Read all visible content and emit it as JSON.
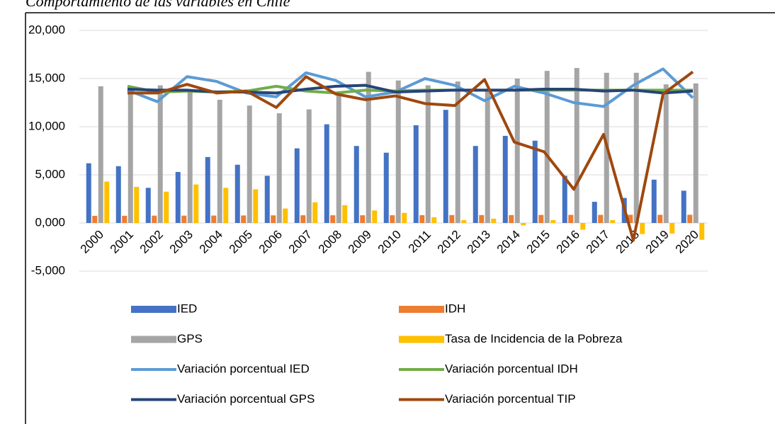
{
  "chart_data": {
    "type": "combo",
    "title": "Comportamiento de las variables en Chile",
    "categories": [
      "2000",
      "2001",
      "2002",
      "2003",
      "2004",
      "2005",
      "2006",
      "2007",
      "2008",
      "2009",
      "2010",
      "2011",
      "2012",
      "2013",
      "2014",
      "2015",
      "2016",
      "2017",
      "2018",
      "2019",
      "2020"
    ],
    "ylim": [
      -5,
      20
    ],
    "yticks": [
      {
        "value": -5,
        "label": "-5,000"
      },
      {
        "value": 0,
        "label": "0,000"
      },
      {
        "value": 5,
        "label": "5,000"
      },
      {
        "value": 10,
        "label": "10,000"
      },
      {
        "value": 15,
        "label": "15,000"
      },
      {
        "value": 20,
        "label": "20,000"
      }
    ],
    "grid": true,
    "series": [
      {
        "name": "IED",
        "type": "bar",
        "color": "#4472c4",
        "values": [
          6.2,
          5.9,
          3.65,
          5.3,
          6.85,
          6.05,
          4.9,
          7.75,
          10.25,
          8.0,
          7.3,
          10.15,
          11.75,
          8.0,
          9.05,
          8.55,
          4.9,
          2.2,
          2.6,
          4.5,
          3.35
        ]
      },
      {
        "name": "IDH",
        "type": "bar",
        "color": "#ed7d31",
        "values": [
          0.74,
          0.75,
          0.76,
          0.76,
          0.77,
          0.78,
          0.79,
          0.8,
          0.8,
          0.8,
          0.8,
          0.81,
          0.82,
          0.82,
          0.82,
          0.83,
          0.84,
          0.84,
          0.85,
          0.85,
          0.85
        ]
      },
      {
        "name": "GPS",
        "type": "bar",
        "color": "#a5a5a5",
        "values": [
          14.2,
          13.9,
          14.3,
          13.8,
          12.8,
          12.2,
          11.4,
          11.8,
          13.3,
          15.7,
          14.8,
          14.3,
          14.7,
          13.8,
          15.0,
          15.8,
          16.1,
          15.6,
          15.6,
          14.4,
          14.5
        ]
      },
      {
        "name": "Tasa de Incidencia de la Pobreza",
        "type": "bar",
        "color": "#ffc000",
        "values": [
          4.3,
          3.75,
          3.25,
          4.0,
          3.65,
          3.5,
          1.5,
          2.15,
          1.85,
          1.3,
          1.05,
          0.6,
          0.3,
          0.45,
          -0.25,
          0.3,
          -0.7,
          0.3,
          -1.15,
          -1.1,
          -1.75
        ]
      },
      {
        "name": "Variación porcentual IED",
        "type": "line",
        "color": "#5b9bd5",
        "values": [
          null,
          13.8,
          12.6,
          15.2,
          14.7,
          13.5,
          13.1,
          15.6,
          14.8,
          13.1,
          13.6,
          15.0,
          14.3,
          12.7,
          14.2,
          13.5,
          12.5,
          12.1,
          14.3,
          16.0,
          13.0
        ]
      },
      {
        "name": "Variación porcentual IDH",
        "type": "line",
        "color": "#70ad47",
        "values": [
          null,
          14.2,
          13.6,
          13.7,
          13.6,
          13.7,
          14.2,
          13.7,
          13.5,
          13.8,
          13.7,
          13.8,
          13.8,
          13.8,
          13.8,
          13.8,
          13.8,
          13.8,
          13.8,
          13.8,
          13.8
        ]
      },
      {
        "name": "Variación porcentual GPS",
        "type": "line",
        "color": "#264478",
        "values": [
          null,
          13.9,
          13.8,
          13.8,
          13.6,
          13.6,
          13.5,
          13.9,
          14.2,
          14.3,
          13.6,
          13.7,
          13.8,
          13.8,
          13.8,
          13.9,
          13.9,
          13.7,
          13.8,
          13.5,
          13.7
        ]
      },
      {
        "name": "Variación porcentual TIP",
        "type": "line",
        "color": "#9e480e",
        "values": [
          null,
          13.5,
          13.5,
          14.4,
          13.5,
          13.7,
          12.0,
          15.2,
          13.4,
          12.8,
          13.2,
          12.4,
          12.2,
          14.9,
          8.4,
          7.4,
          3.5,
          9.2,
          -1.8,
          13.4,
          15.7
        ]
      }
    ]
  }
}
